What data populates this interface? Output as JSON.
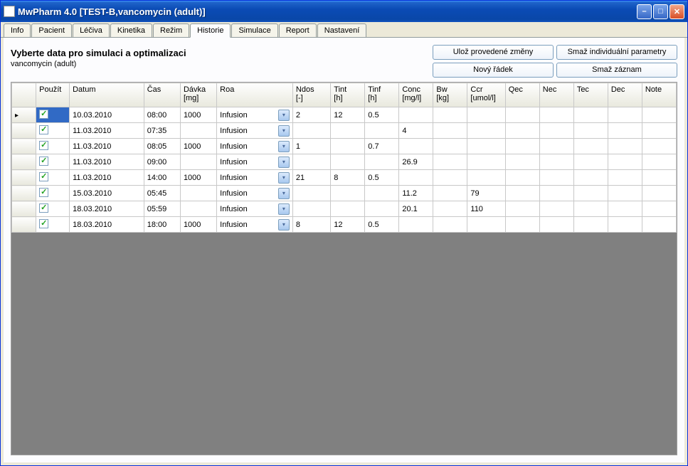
{
  "window": {
    "title": "MwPharm 4.0  [TEST-B,vancomycin (adult)]"
  },
  "tabs": [
    "Info",
    "Pacient",
    "Léčiva",
    "Kinetika",
    "Režim",
    "Historie",
    "Simulace",
    "Report",
    "Nastavení"
  ],
  "activeTab": "Historie",
  "header": {
    "title": "Vyberte data pro simulaci a optimalizaci",
    "subtitle": "vancomycin (adult)"
  },
  "buttons": {
    "saveChanges": "Ulož provedené změny",
    "deleteIndiv": "Smaž individuální parametry",
    "newRow": "Nový řádek",
    "deleteRec": "Smaž záznam"
  },
  "columns": [
    {
      "key": "use",
      "label": "Použít"
    },
    {
      "key": "date",
      "label": "Datum"
    },
    {
      "key": "time",
      "label": "Čas"
    },
    {
      "key": "dose",
      "label": "Dávka [mg]"
    },
    {
      "key": "roa",
      "label": "Roa"
    },
    {
      "key": "ndos",
      "label": "Ndos [-]"
    },
    {
      "key": "tint",
      "label": "Tint [h]"
    },
    {
      "key": "tinf",
      "label": "Tinf [h]"
    },
    {
      "key": "conc",
      "label": "Conc [mg/l]"
    },
    {
      "key": "bw",
      "label": "Bw [kg]"
    },
    {
      "key": "ccr",
      "label": "Ccr [umol/l]"
    },
    {
      "key": "qec",
      "label": "Qec"
    },
    {
      "key": "nec",
      "label": "Nec"
    },
    {
      "key": "tec",
      "label": "Tec"
    },
    {
      "key": "dec",
      "label": "Dec"
    },
    {
      "key": "note",
      "label": "Note"
    }
  ],
  "rows": [
    {
      "sel": true,
      "use": true,
      "date": "10.03.2010",
      "time": "08:00",
      "dose": "1000",
      "roa": "Infusion",
      "ndos": "2",
      "tint": "12",
      "tinf": "0.5",
      "conc": "",
      "bw": "",
      "ccr": "",
      "qec": "",
      "nec": "",
      "tec": "",
      "dec": "",
      "note": ""
    },
    {
      "sel": false,
      "use": true,
      "date": "11.03.2010",
      "time": "07:35",
      "dose": "",
      "roa": "Infusion",
      "ndos": "",
      "tint": "",
      "tinf": "",
      "conc": "4",
      "bw": "",
      "ccr": "",
      "qec": "",
      "nec": "",
      "tec": "",
      "dec": "",
      "note": ""
    },
    {
      "sel": false,
      "use": true,
      "date": "11.03.2010",
      "time": "08:05",
      "dose": "1000",
      "roa": "Infusion",
      "ndos": "1",
      "tint": "",
      "tinf": "0.7",
      "conc": "",
      "bw": "",
      "ccr": "",
      "qec": "",
      "nec": "",
      "tec": "",
      "dec": "",
      "note": ""
    },
    {
      "sel": false,
      "use": true,
      "date": "11.03.2010",
      "time": "09:00",
      "dose": "",
      "roa": "Infusion",
      "ndos": "",
      "tint": "",
      "tinf": "",
      "conc": "26.9",
      "bw": "",
      "ccr": "",
      "qec": "",
      "nec": "",
      "tec": "",
      "dec": "",
      "note": ""
    },
    {
      "sel": false,
      "use": true,
      "date": "11.03.2010",
      "time": "14:00",
      "dose": "1000",
      "roa": "Infusion",
      "ndos": "21",
      "tint": "8",
      "tinf": "0.5",
      "conc": "",
      "bw": "",
      "ccr": "",
      "qec": "",
      "nec": "",
      "tec": "",
      "dec": "",
      "note": ""
    },
    {
      "sel": false,
      "use": true,
      "date": "15.03.2010",
      "time": "05:45",
      "dose": "",
      "roa": "Infusion",
      "ndos": "",
      "tint": "",
      "tinf": "",
      "conc": "11.2",
      "bw": "",
      "ccr": "79",
      "qec": "",
      "nec": "",
      "tec": "",
      "dec": "",
      "note": ""
    },
    {
      "sel": false,
      "use": true,
      "date": "18.03.2010",
      "time": "05:59",
      "dose": "",
      "roa": "Infusion",
      "ndos": "",
      "tint": "",
      "tinf": "",
      "conc": "20.1",
      "bw": "",
      "ccr": "110",
      "qec": "",
      "nec": "",
      "tec": "",
      "dec": "",
      "note": ""
    },
    {
      "sel": false,
      "use": true,
      "date": "18.03.2010",
      "time": "18:00",
      "dose": "1000",
      "roa": "Infusion",
      "ndos": "8",
      "tint": "12",
      "tinf": "0.5",
      "conc": "",
      "bw": "",
      "ccr": "",
      "qec": "",
      "nec": "",
      "tec": "",
      "dec": "",
      "note": ""
    }
  ],
  "colors": {
    "titlebar_grad": [
      "#3c91f7",
      "#0947a8"
    ],
    "selected_cell": "#316ac5",
    "check_color": "#21a121",
    "header_bg": "#e8e8dd",
    "grid_border": "#c8c8c8",
    "window_bg": "#ece9d8",
    "empty_grid_bg": "#808080"
  }
}
